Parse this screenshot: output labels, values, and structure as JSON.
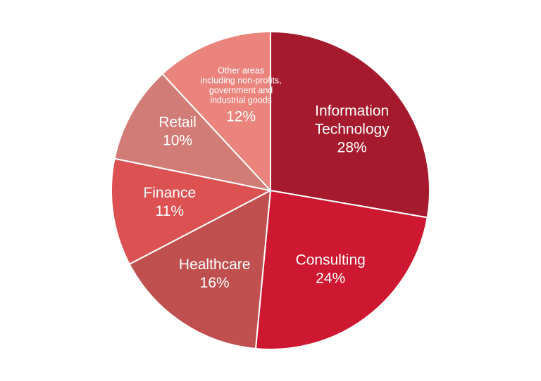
{
  "chart_data": {
    "type": "pie",
    "slices": [
      {
        "name": "Information Technology",
        "label_lines": [
          "Information",
          "Technology"
        ],
        "value": 28,
        "value_label": "28%",
        "color": "#A61A2D"
      },
      {
        "name": "Consulting",
        "label_lines": [
          "Consulting"
        ],
        "value": 24,
        "value_label": "24%",
        "color": "#CE1730"
      },
      {
        "name": "Healthcare",
        "label_lines": [
          "Healthcare"
        ],
        "value": 16,
        "value_label": "16%",
        "color": "#C05050"
      },
      {
        "name": "Finance",
        "label_lines": [
          "Finance"
        ],
        "value": 11,
        "value_label": "11%",
        "color": "#DC5252"
      },
      {
        "name": "Retail",
        "label_lines": [
          "Retail"
        ],
        "value": 10,
        "value_label": "10%",
        "color": "#D27C77"
      },
      {
        "name": "Other areas including non-profits, government and industrial goods",
        "label_lines": [
          "Other areas",
          "including non-profits,",
          "government and",
          "industrial goods"
        ],
        "value": 12,
        "value_label": "12%",
        "color": "#EA847C"
      }
    ],
    "start_angle": "12 o'clock",
    "direction": "clockwise",
    "legend": "none"
  }
}
